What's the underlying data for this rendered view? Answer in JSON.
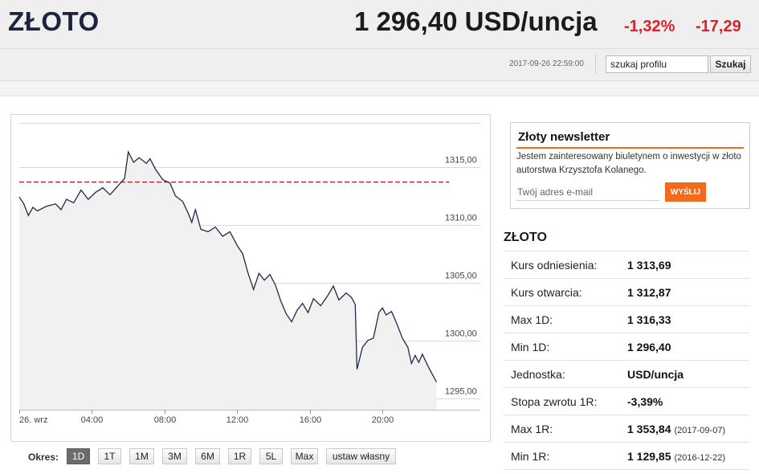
{
  "header": {
    "title": "ZŁOTO",
    "price": "1 296,40 USD/uncja",
    "change_pct": "-1,32%",
    "change_abs": "-17,29",
    "timestamp": "2017-09-26 22:59:00",
    "search_value": "szukaj profilu",
    "search_button": "Szukaj"
  },
  "colors": {
    "accent_orange": "#f26b1d",
    "negative_red": "#d8232a",
    "title_navy": "#1b2440",
    "reference_line": "#a51c1c",
    "series_line": "#1f2a44"
  },
  "chart_data": {
    "type": "line",
    "x_ticks": [
      "26. wrz",
      "04:00",
      "08:00",
      "12:00",
      "16:00",
      "20:00"
    ],
    "y_ticks": [
      "1315,00",
      "1310,00",
      "1305,00",
      "1300,00",
      "1295,00"
    ],
    "ylim": [
      1294,
      1319.5
    ],
    "x_range_hours": [
      0,
      23
    ],
    "grid": "horizontal",
    "reference_line": 1313.69,
    "series": [
      {
        "points": [
          [
            0,
            1312.4
          ],
          [
            0.25,
            1311.8
          ],
          [
            0.5,
            1310.8
          ],
          [
            0.75,
            1311.5
          ],
          [
            1.0,
            1311.2
          ],
          [
            1.5,
            1311.6
          ],
          [
            2.0,
            1311.8
          ],
          [
            2.3,
            1311.3
          ],
          [
            2.6,
            1312.2
          ],
          [
            3.0,
            1311.9
          ],
          [
            3.4,
            1313.0
          ],
          [
            3.8,
            1312.2
          ],
          [
            4.2,
            1312.8
          ],
          [
            4.6,
            1313.2
          ],
          [
            5.0,
            1312.6
          ],
          [
            5.4,
            1313.3
          ],
          [
            5.8,
            1314.0
          ],
          [
            6.0,
            1316.3
          ],
          [
            6.3,
            1315.4
          ],
          [
            6.6,
            1315.8
          ],
          [
            7.0,
            1315.3
          ],
          [
            7.2,
            1315.7
          ],
          [
            7.5,
            1314.8
          ],
          [
            7.9,
            1313.9
          ],
          [
            8.3,
            1313.6
          ],
          [
            8.6,
            1312.5
          ],
          [
            9.0,
            1312.0
          ],
          [
            9.3,
            1311.0
          ],
          [
            9.5,
            1310.2
          ],
          [
            9.7,
            1311.3
          ],
          [
            10.0,
            1309.6
          ],
          [
            10.4,
            1309.4
          ],
          [
            10.8,
            1309.8
          ],
          [
            11.2,
            1309.0
          ],
          [
            11.6,
            1309.4
          ],
          [
            12.0,
            1308.2
          ],
          [
            12.3,
            1307.5
          ],
          [
            12.6,
            1305.8
          ],
          [
            12.9,
            1304.4
          ],
          [
            13.2,
            1305.8
          ],
          [
            13.5,
            1305.2
          ],
          [
            13.8,
            1305.7
          ],
          [
            14.1,
            1304.8
          ],
          [
            14.4,
            1303.4
          ],
          [
            14.7,
            1302.3
          ],
          [
            15.0,
            1301.6
          ],
          [
            15.3,
            1302.6
          ],
          [
            15.6,
            1303.2
          ],
          [
            15.9,
            1302.4
          ],
          [
            16.2,
            1303.6
          ],
          [
            16.6,
            1303.0
          ],
          [
            17.0,
            1303.9
          ],
          [
            17.3,
            1304.7
          ],
          [
            17.6,
            1303.5
          ],
          [
            18.0,
            1304.1
          ],
          [
            18.3,
            1303.7
          ],
          [
            18.5,
            1303.1
          ],
          [
            18.6,
            1297.5
          ],
          [
            18.9,
            1299.4
          ],
          [
            19.2,
            1300.0
          ],
          [
            19.5,
            1300.2
          ],
          [
            19.8,
            1302.4
          ],
          [
            20.0,
            1302.8
          ],
          [
            20.2,
            1302.2
          ],
          [
            20.5,
            1302.5
          ],
          [
            20.8,
            1301.4
          ],
          [
            21.1,
            1300.2
          ],
          [
            21.4,
            1299.4
          ],
          [
            21.6,
            1298.0
          ],
          [
            21.8,
            1298.7
          ],
          [
            22.0,
            1298.1
          ],
          [
            22.2,
            1298.8
          ],
          [
            22.5,
            1297.8
          ],
          [
            22.7,
            1297.2
          ],
          [
            22.98,
            1296.4
          ]
        ]
      }
    ]
  },
  "range": {
    "label": "Okres:",
    "buttons": [
      "1D",
      "1T",
      "1M",
      "3M",
      "6M",
      "1R",
      "5L",
      "Max",
      "ustaw własny"
    ],
    "active": "1D"
  },
  "newsletter": {
    "title": "Złoty newsletter",
    "description": "Jestem zainteresowany biuletynem o inwestycji w złoto autorstwa Krzysztofa Kolanego.",
    "email_placeholder": "Twój adres e-mail",
    "button": "WYŚLIJ"
  },
  "quote": {
    "title": "ZŁOTO",
    "rows": [
      {
        "label": "Kurs odniesienia:",
        "value": "1 313,69",
        "date": ""
      },
      {
        "label": "Kurs otwarcia:",
        "value": "1 312,87",
        "date": ""
      },
      {
        "label": "Max 1D:",
        "value": "1 316,33",
        "date": ""
      },
      {
        "label": "Min 1D:",
        "value": "1 296,40",
        "date": ""
      },
      {
        "label": "Jednostka:",
        "value": "USD/uncja",
        "date": ""
      },
      {
        "label": "Stopa zwrotu 1R:",
        "value": "-3,39%",
        "date": ""
      },
      {
        "label": "Max 1R:",
        "value": "1 353,84",
        "date": "(2017-09-07)"
      },
      {
        "label": "Min 1R:",
        "value": "1 129,85",
        "date": "(2016-12-22)"
      }
    ]
  }
}
